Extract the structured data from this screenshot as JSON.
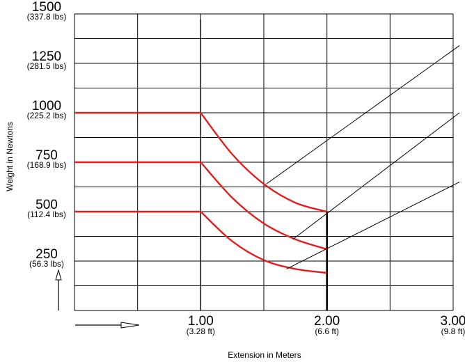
{
  "chart_data": {
    "type": "line",
    "xlabel": "Extension in Meters",
    "ylabel": "Weight in Newtons",
    "xlim": [
      0,
      3.0
    ],
    "ylim": [
      0,
      1500
    ],
    "grid": true,
    "y_ticks": [
      {
        "value": 250,
        "label": "250",
        "sublabel": "(56.3 lbs)"
      },
      {
        "value": 500,
        "label": "500",
        "sublabel": "(112.4 lbs)"
      },
      {
        "value": 750,
        "label": "750",
        "sublabel": "(168.9 lbs)"
      },
      {
        "value": 1000,
        "label": "1000",
        "sublabel": "(225.2 lbs)"
      },
      {
        "value": 1250,
        "label": "1250",
        "sublabel": "(281.5 lbs)"
      },
      {
        "value": 1500,
        "label": "1500",
        "sublabel": "(337.8 lbs)"
      }
    ],
    "x_ticks": [
      {
        "value": 1.0,
        "label": "1.00",
        "sublabel": "(3.28 ft)"
      },
      {
        "value": 2.0,
        "label": "2.00",
        "sublabel": "(6.6 ft)"
      },
      {
        "value": 3.0,
        "label": "3.00",
        "sublabel": "(9.8 ft)"
      }
    ],
    "series": [
      {
        "color": "#e02020",
        "x": [
          0,
          1.0,
          1.25,
          1.5,
          1.75,
          2.0
        ],
        "y": [
          1000,
          1000,
          790,
          640,
          545,
          500
        ]
      },
      {
        "color": "#e02020",
        "x": [
          0,
          1.0,
          1.25,
          1.5,
          1.75,
          2.0
        ],
        "y": [
          750,
          750,
          570,
          440,
          360,
          310
        ]
      },
      {
        "color": "#e02020",
        "x": [
          0,
          1.0,
          1.25,
          1.5,
          1.75,
          2.0
        ],
        "y": [
          500,
          500,
          350,
          255,
          210,
          190
        ]
      }
    ],
    "stop_line": {
      "x": 2.0,
      "y_from": 0,
      "y_to": 500
    },
    "leaders": [
      {
        "from": {
          "x": 1.52,
          "y": 640
        },
        "to": {
          "x": 3.05,
          "y": 1340
        }
      },
      {
        "from": {
          "x": 1.73,
          "y": 360
        },
        "to": {
          "x": 3.05,
          "y": 1000
        }
      },
      {
        "from": {
          "x": 1.68,
          "y": 210
        },
        "to": {
          "x": 3.05,
          "y": 650
        }
      }
    ],
    "colors": {
      "curve": "#e02020",
      "grid": "#000000"
    }
  }
}
